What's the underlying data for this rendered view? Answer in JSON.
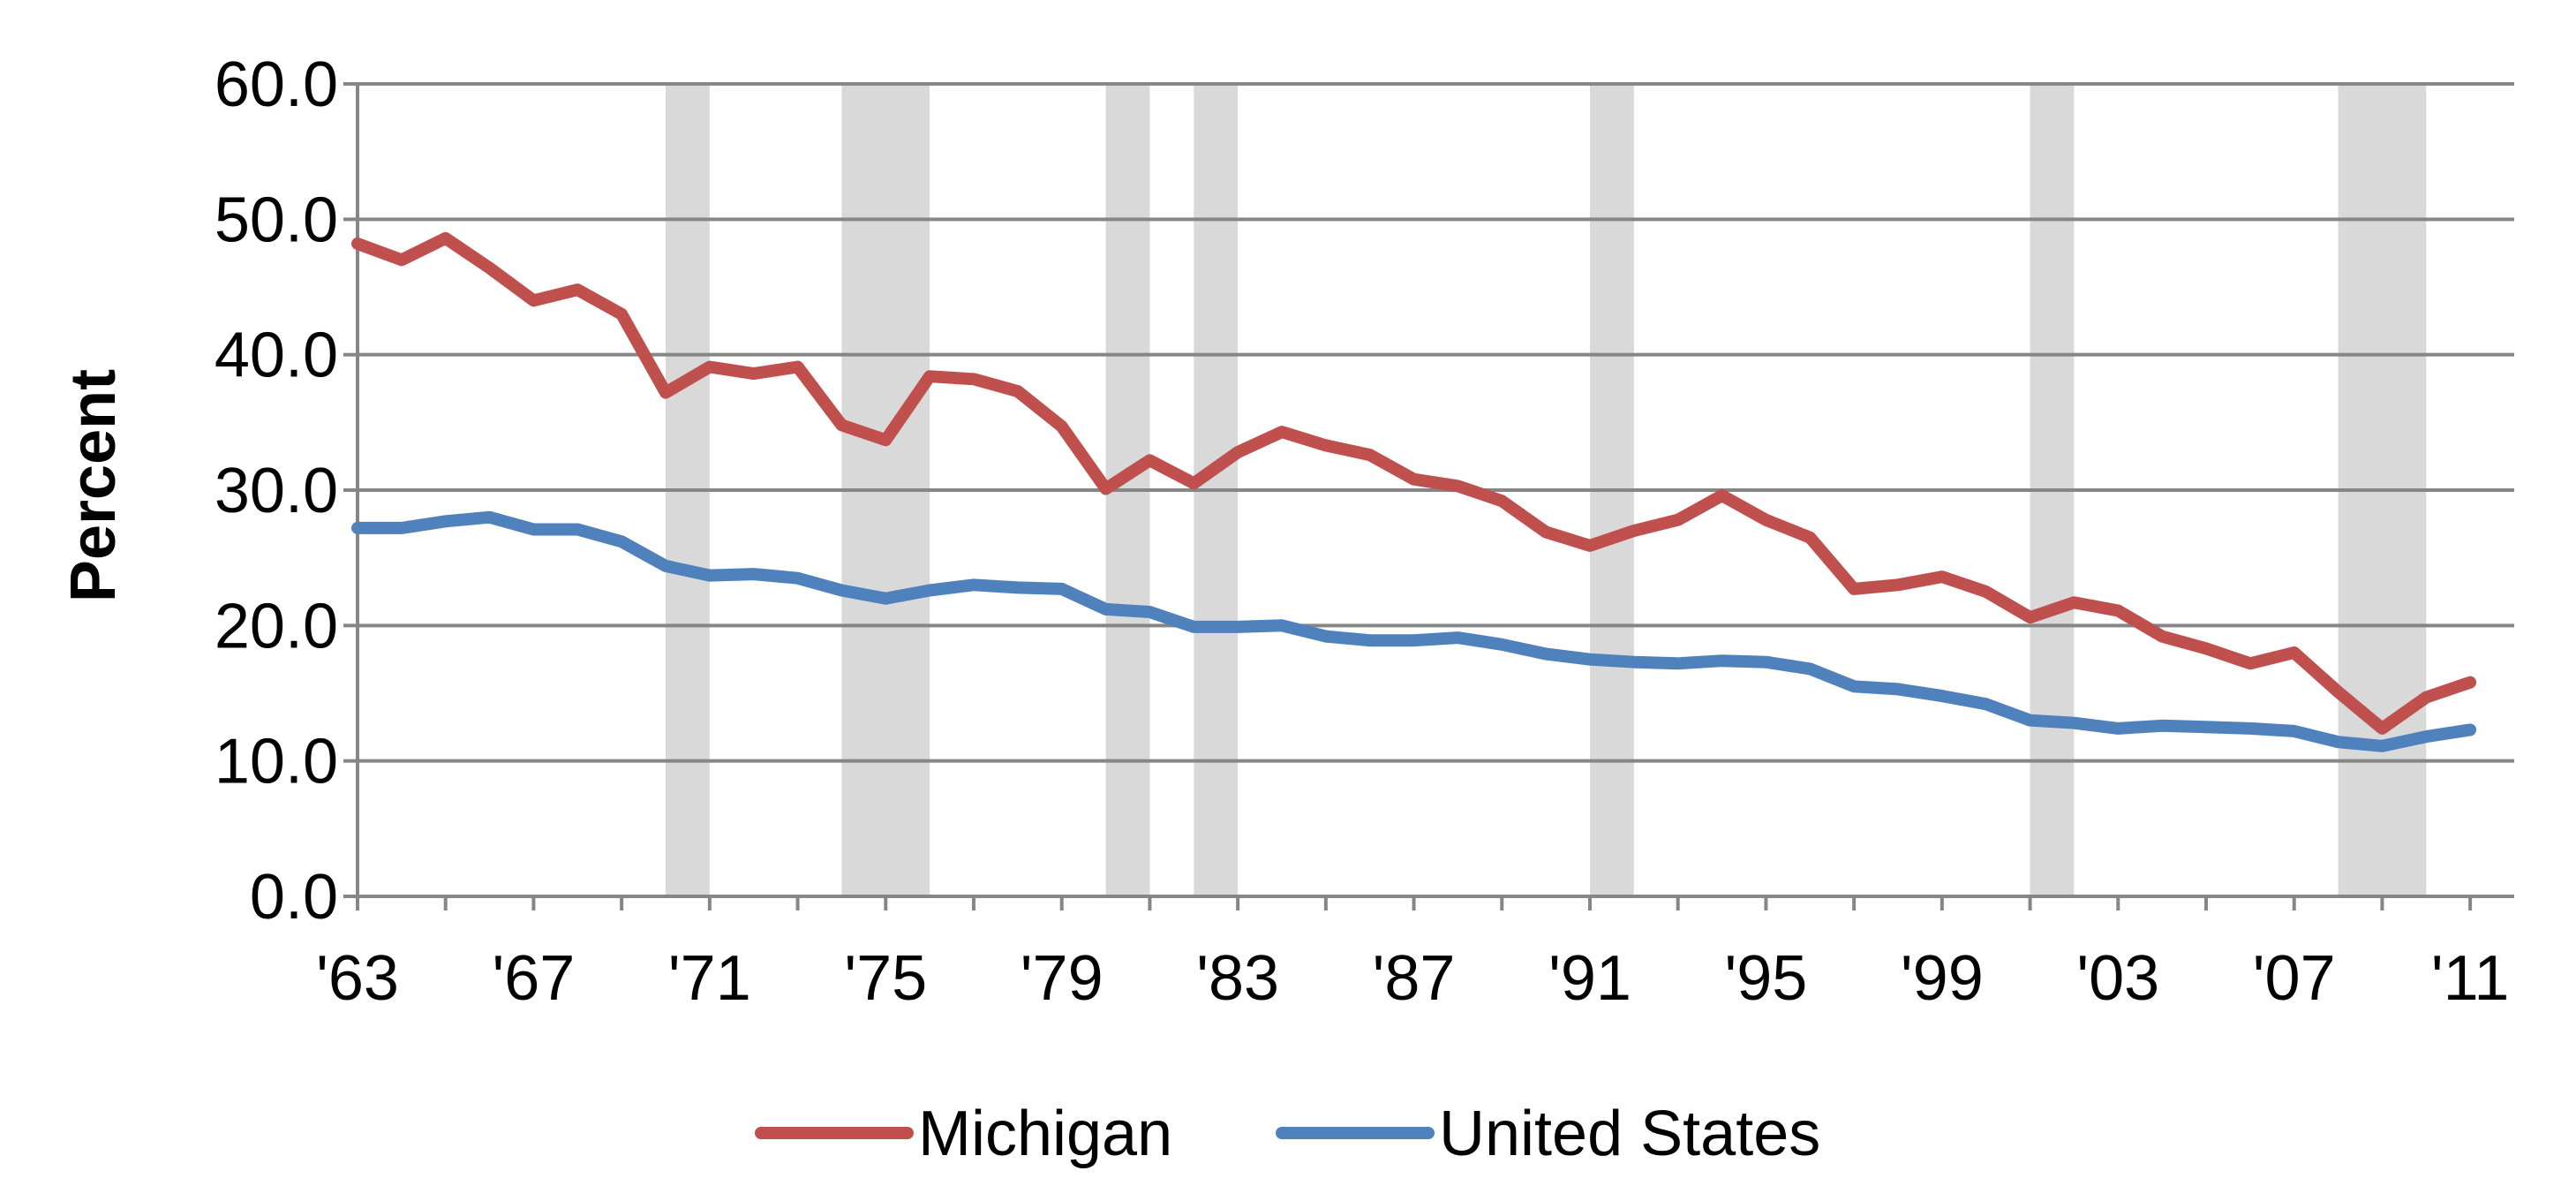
{
  "chart_data": {
    "type": "line",
    "ylabel": "Percent",
    "xlabel": "",
    "ylim": [
      0,
      60
    ],
    "yticks": [
      0,
      10,
      20,
      30,
      40,
      50,
      60
    ],
    "ytick_labels": [
      "0.0",
      "10.0",
      "20.0",
      "30.0",
      "40.0",
      "50.0",
      "60.0"
    ],
    "xlim": [
      1963,
      2012
    ],
    "xticks": [
      1963,
      1967,
      1971,
      1975,
      1979,
      1983,
      1987,
      1991,
      1995,
      1999,
      2003,
      2007,
      2011
    ],
    "xtick_labels": [
      "'63",
      "'67",
      "'71",
      "'75",
      "'79",
      "'83",
      "'87",
      "'91",
      "'95",
      "'99",
      "'03",
      "'07",
      "'11"
    ],
    "grid": "horizontal",
    "legend_position": "bottom",
    "recession_bands": [
      [
        1970,
        1971
      ],
      [
        1974,
        1976
      ],
      [
        1980,
        1981
      ],
      [
        1982,
        1983
      ],
      [
        1991,
        1992
      ],
      [
        2001,
        2002
      ],
      [
        2008,
        2010
      ]
    ],
    "x": [
      1963,
      1964,
      1965,
      1966,
      1967,
      1968,
      1969,
      1970,
      1971,
      1972,
      1973,
      1974,
      1975,
      1976,
      1977,
      1978,
      1979,
      1980,
      1981,
      1982,
      1983,
      1984,
      1985,
      1986,
      1987,
      1988,
      1989,
      1990,
      1991,
      1992,
      1993,
      1994,
      1995,
      1996,
      1997,
      1998,
      1999,
      2000,
      2001,
      2002,
      2003,
      2004,
      2005,
      2006,
      2007,
      2008,
      2009,
      2010,
      2011
    ],
    "series": [
      {
        "name": "Michigan",
        "color": "#c0504d",
        "values": [
          48.2,
          47.0,
          48.6,
          46.4,
          44.0,
          44.8,
          43.0,
          37.2,
          39.1,
          38.6,
          39.1,
          34.8,
          33.7,
          38.4,
          38.2,
          37.3,
          34.7,
          30.1,
          32.2,
          30.5,
          32.8,
          34.3,
          33.3,
          32.6,
          30.8,
          30.3,
          29.2,
          26.9,
          25.9,
          27.0,
          27.8,
          29.6,
          27.8,
          26.5,
          22.7,
          23.0,
          23.6,
          22.5,
          20.6,
          21.7,
          21.1,
          19.2,
          18.3,
          17.2,
          18.0,
          15.1,
          12.4,
          14.7,
          15.8
        ]
      },
      {
        "name": "United States",
        "color": "#4f81bd",
        "values": [
          27.2,
          27.2,
          27.7,
          28.0,
          27.1,
          27.1,
          26.2,
          24.4,
          23.7,
          23.8,
          23.5,
          22.6,
          22.0,
          22.6,
          23.0,
          22.8,
          22.7,
          21.2,
          21.0,
          19.9,
          19.9,
          20.0,
          19.2,
          18.9,
          18.9,
          19.1,
          18.6,
          17.9,
          17.5,
          17.3,
          17.2,
          17.4,
          17.3,
          16.8,
          15.5,
          15.3,
          14.8,
          14.2,
          13.0,
          12.8,
          12.4,
          12.6,
          12.5,
          12.4,
          12.2,
          11.4,
          11.1,
          11.8,
          12.3
        ]
      }
    ]
  }
}
